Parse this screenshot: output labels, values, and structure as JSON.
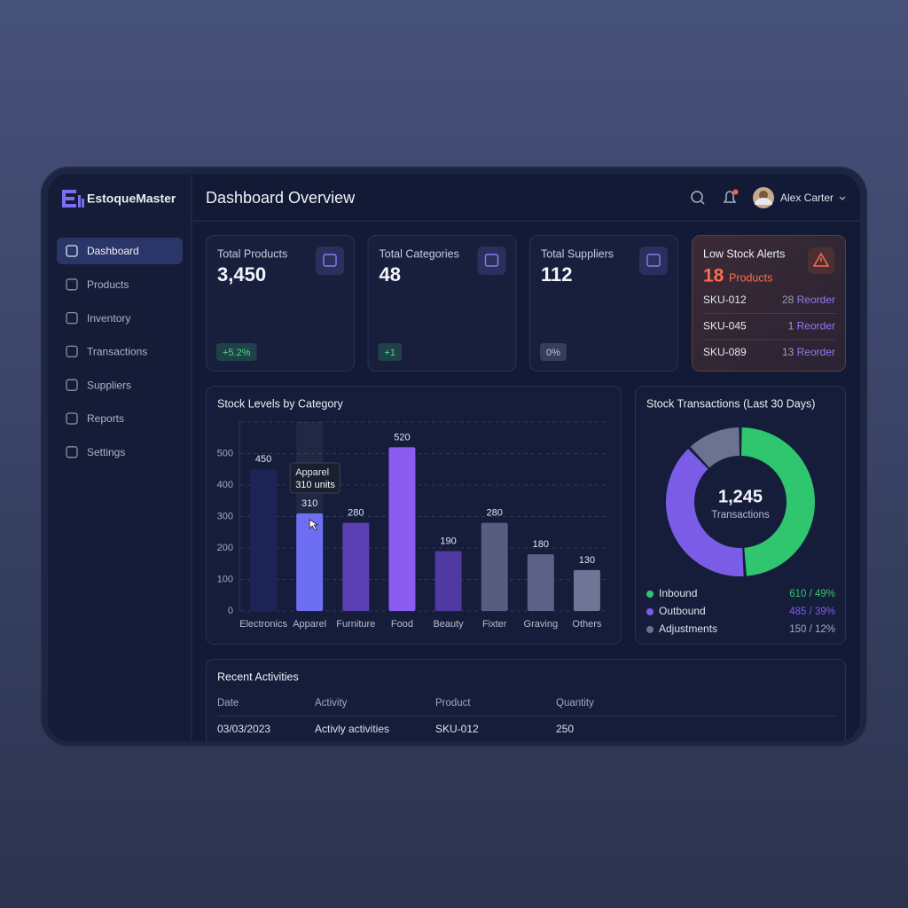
{
  "app": {
    "brand": "EstoqueMaster",
    "nav": [
      "Dashboard",
      "Products",
      "Inventory",
      "Transactions",
      "Suppliers",
      "Reports",
      "Settings"
    ]
  },
  "header": {
    "title": "Dashboard Overview",
    "user": "Alex Carter"
  },
  "stats": [
    {
      "label": "Total Products",
      "value": "3,450",
      "change": "+5.2%",
      "change_color": "#4ade80"
    },
    {
      "label": "Total Categories",
      "value": "48",
      "change": "+1",
      "change_color": "#4ade80"
    },
    {
      "label": "Total Suppliers",
      "value": "112",
      "change": "0%",
      "change_color": "#c3c8d8"
    }
  ],
  "alerts": {
    "title": "Low Stock Alerts",
    "count": 18,
    "count_label": "Products",
    "items": [
      {
        "sku": "SKU-012",
        "qty": 28,
        "action": "Reorder"
      },
      {
        "sku": "SKU-045",
        "qty": 1,
        "action": "Reorder"
      },
      {
        "sku": "SKU-089",
        "qty": 13,
        "action": "Reorder"
      }
    ]
  },
  "activities": {
    "title": "Recent Activities",
    "columns": [
      "Date",
      "Activity",
      "Product",
      "Quantity"
    ],
    "rows": [
      [
        "03/03/2023",
        "Activly activities",
        "SKU-012",
        "250"
      ]
    ]
  },
  "chart_data": [
    {
      "type": "bar",
      "title": "Stock Levels by Category",
      "categories": [
        "Electronics",
        "Apparel",
        "Furniture",
        "Food",
        "Beauty",
        "Fixter",
        "Graving",
        "Others"
      ],
      "values": [
        450,
        310,
        280,
        520,
        190,
        280,
        180,
        130
      ],
      "colors": [
        "#1b2452",
        "#6e6ef2",
        "#5b40b3",
        "#8a5cf0",
        "#4e3aa2",
        "#565d80",
        "#5b6286",
        "#6f7594"
      ],
      "ylim": [
        0,
        600
      ],
      "yticks": [
        0,
        100,
        200,
        300,
        400,
        500
      ],
      "grid": true,
      "tooltip": {
        "title": "Apparel",
        "text": "310 units"
      }
    },
    {
      "type": "donut",
      "title": "Stock Transactions (Last 30 Days)",
      "center_value": "1,245",
      "center_label": "Transactions",
      "categories": [
        "Inbound",
        "Outbound",
        "Adjustments"
      ],
      "values": [
        610,
        485,
        150
      ],
      "value_labels": [
        "610 / 49%",
        "485 / 39%",
        "150 / 12%"
      ],
      "colors": [
        "#2fc66f",
        "#7b5ce6",
        "#6c7391"
      ]
    }
  ]
}
